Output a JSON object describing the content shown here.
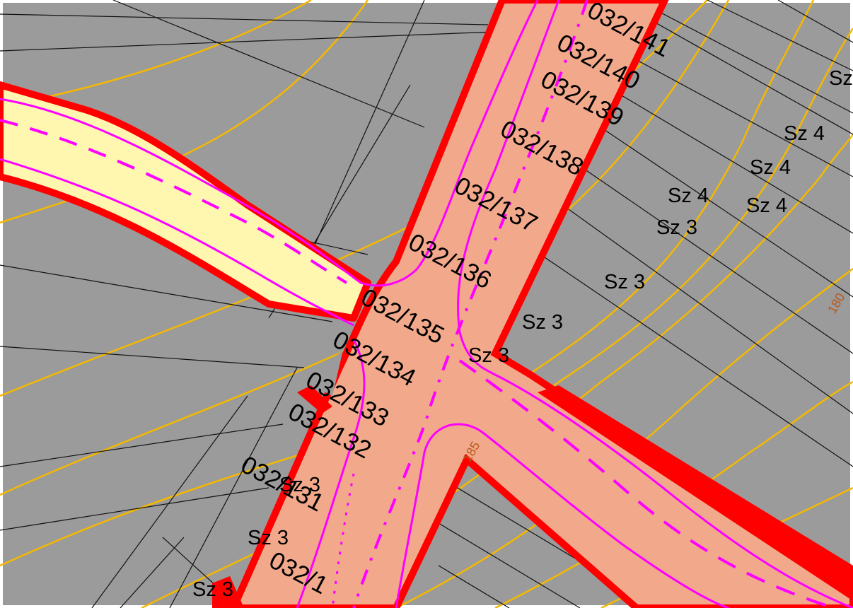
{
  "colors": {
    "background": "#9b9b9b",
    "frame": "#ffffff",
    "road_main_fill": "#f2a98b",
    "road_side_fill": "#fff6b0",
    "road_edge": "#ff0000",
    "lane_line": "#ff00ff",
    "contour": "#f5b800",
    "parcel_line": "#111111"
  },
  "plots": {
    "p141": "032/141",
    "p140": "032/140",
    "p139": "032/139",
    "p138": "032/138",
    "p137": "032/137",
    "p136": "032/136",
    "p135": "032/135",
    "p134": "032/134",
    "p133": "032/133",
    "p132": "032/132",
    "p131": "032/131",
    "p130": "032/1"
  },
  "zones": {
    "z1": "Sz 4",
    "z2": "Sz 4",
    "z3": "Sz 4",
    "z4": "Sz 4",
    "z5": "Sz 3",
    "z6": "Sz 3",
    "z7": "Sz 3",
    "z8": "Sz 3",
    "z9": "Sz 3",
    "z10": "Sz 3",
    "z11": "Sz 3",
    "z12": "Sz"
  },
  "contours": {
    "c1": "180",
    "c2": "185"
  }
}
